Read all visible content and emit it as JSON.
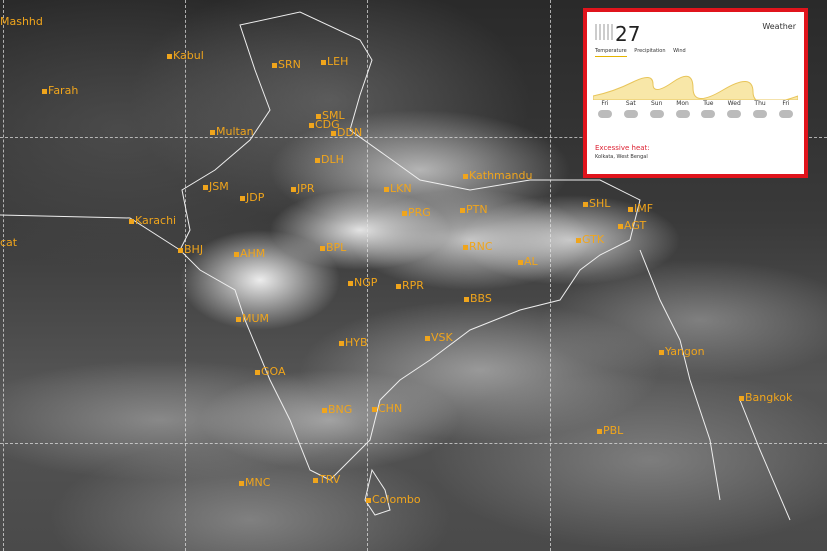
{
  "map": {
    "labels": [
      "Mashhd",
      "Kabul",
      "Farah",
      "SRN",
      "LEH",
      "SML",
      "CDG",
      "DDN",
      "Multan",
      "DLH",
      "JSM",
      "JDP",
      "JPR",
      "LKN",
      "Karachi",
      "PRG",
      "PTN",
      "Kathmandu",
      "BHJ",
      "AHM",
      "BPL",
      "RNC",
      "AL",
      "NGP",
      "RPR",
      "BBS",
      "MUM",
      "HYB",
      "VSK",
      "GOA",
      "BNG",
      "CHN",
      "PBL",
      "Yangon",
      "Bangkok",
      "TRV",
      "MNC",
      "Colombo",
      "GTK",
      "SHL",
      "IMF",
      "AGT",
      "cat"
    ]
  },
  "inset": {
    "temperature": "27",
    "title": "Weather",
    "weather_icon": "cloud-rain-icon",
    "tabs": [
      "Temperature",
      "Precipitation",
      "Wind"
    ],
    "days": [
      "Fri",
      "Sat",
      "Sun",
      "Mon",
      "Tue",
      "Wed",
      "Thu",
      "Fri"
    ],
    "alert_title": "Excessive heat:",
    "alert_text": "Kolkata, West Bengal",
    "accent_color": "#e0141c"
  }
}
